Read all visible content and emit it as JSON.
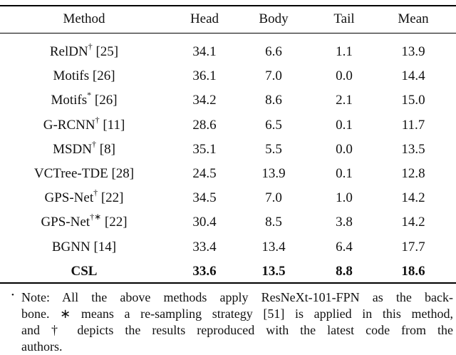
{
  "table": {
    "header": [
      "Method",
      "Head",
      "Body",
      "Tail",
      "Mean"
    ],
    "rows": [
      {
        "method": {
          "name": "RelDN",
          "mark": "†",
          "ref": "[25]"
        },
        "values": [
          "34.1",
          "6.6",
          "1.1",
          "13.9"
        ]
      },
      {
        "method": {
          "name": "Motifs",
          "ref": "[26]"
        },
        "values": [
          "36.1",
          "7.0",
          "0.0",
          "14.4"
        ]
      },
      {
        "method": {
          "name": "Motifs",
          "mark": "*",
          "ref": "[26]"
        },
        "values": [
          "34.2",
          "8.6",
          "2.1",
          "15.0"
        ]
      },
      {
        "method": {
          "name": "G-RCNN",
          "mark": "†",
          "ref": "[11]"
        },
        "values": [
          "28.6",
          "6.5",
          "0.1",
          "11.7"
        ]
      },
      {
        "method": {
          "name": "MSDN",
          "mark": "†",
          "ref": "[8]"
        },
        "values": [
          "35.1",
          "5.5",
          "0.0",
          "13.5"
        ]
      },
      {
        "method": {
          "name": "VCTree-TDE",
          "ref": "[28]"
        },
        "values": [
          "24.5",
          "13.9",
          "0.1",
          "12.8"
        ]
      },
      {
        "method": {
          "name": "GPS-Net",
          "mark": "†",
          "ref": "[22]"
        },
        "values": [
          "34.5",
          "7.0",
          "1.0",
          "14.2"
        ]
      },
      {
        "method": {
          "name": "GPS-Net",
          "mark": "†∗",
          "ref": "[22]"
        },
        "values": [
          "30.4",
          "8.5",
          "3.8",
          "14.2"
        ]
      },
      {
        "method": {
          "name": "BGNN",
          "ref": "[14]"
        },
        "values": [
          "33.4",
          "13.4",
          "6.4",
          "17.7"
        ]
      },
      {
        "method": {
          "name": "CSL"
        },
        "values": [
          "33.6",
          "13.5",
          "8.8",
          "18.6"
        ],
        "bold": true
      }
    ]
  },
  "note": {
    "lines": [
      "Note: All the above methods apply ResNeXt-101-FPN as the back-",
      "bone. ∗ means a re-sampling strategy [51] is applied in this method,",
      "and † depicts the results reproduced with the latest code from the",
      "authors."
    ]
  }
}
